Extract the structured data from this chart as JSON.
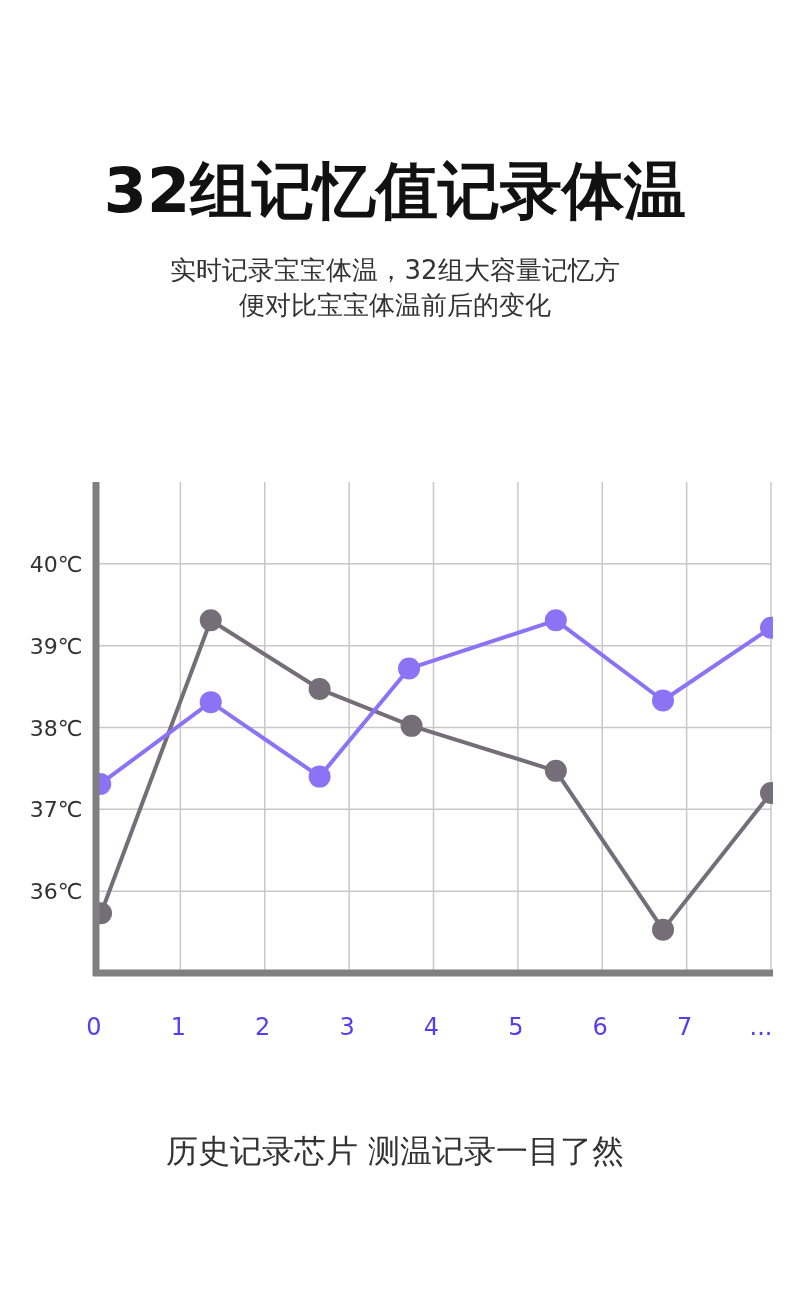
{
  "chart_data": {
    "type": "line",
    "title": "32组记忆值记录体温",
    "subtitle": "实时记录宝宝体温，32组大容量记忆方便对比宝宝体温前后的变化",
    "annotations": [
      "历史记录芯片  测温记录一目了然"
    ],
    "xlim": [
      0,
      8
    ],
    "xticks": [
      0,
      1,
      2,
      3,
      4,
      5,
      6,
      7,
      {
        "value": 8,
        "label": "..."
      }
    ],
    "ylim": [
      35,
      41
    ],
    "yticks": [
      {
        "value": 36,
        "label": "36℃"
      },
      {
        "value": 37,
        "label": "37℃"
      },
      {
        "value": 38,
        "label": "38℃"
      },
      {
        "value": 39,
        "label": "39℃"
      },
      {
        "value": 40,
        "label": "40℃"
      }
    ],
    "grid": true,
    "marker": "circle",
    "line_style": "solid",
    "series": [
      {
        "color": "#756d78",
        "x": [
          0.06,
          1.36,
          2.65,
          3.74,
          5.45,
          6.72,
          8
        ],
        "values": [
          35.73,
          39.31,
          38.47,
          38.02,
          37.47,
          35.53,
          37.2
        ]
      },
      {
        "color": "#8b73f5",
        "x": [
          0.05,
          1.36,
          2.65,
          3.71,
          5.45,
          6.72,
          8
        ],
        "values": [
          37.31,
          38.31,
          37.4,
          38.72,
          39.31,
          38.33,
          39.22
        ]
      }
    ]
  }
}
